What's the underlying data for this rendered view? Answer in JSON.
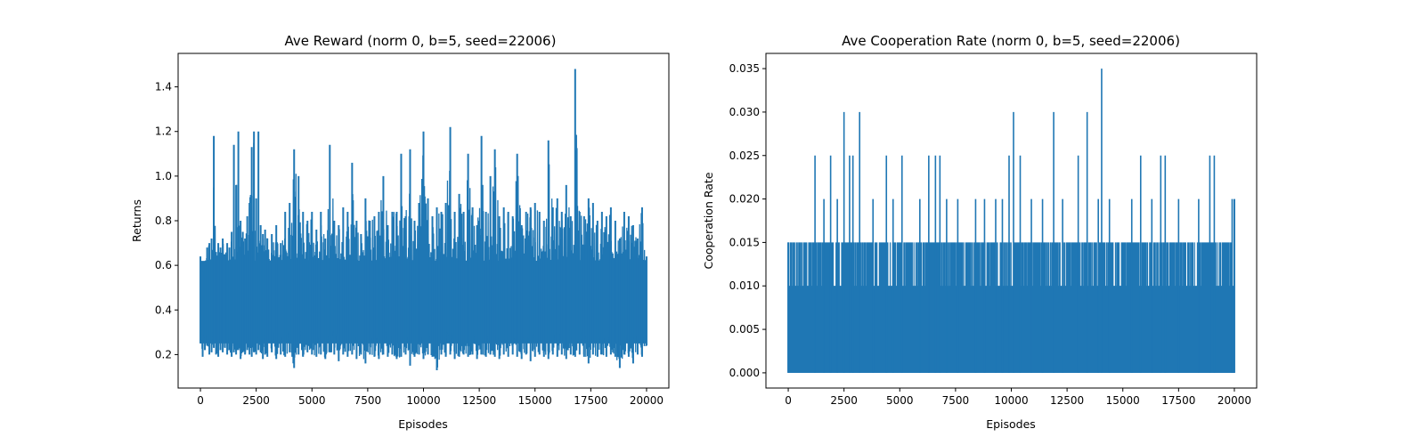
{
  "chart_data": [
    {
      "type": "line",
      "title": "Ave Reward (norm 0, b=5, seed=22006)",
      "xlabel": "Episodes",
      "ylabel": "Returns",
      "xlim": [
        -1000,
        21000
      ],
      "ylim": [
        0.05,
        1.55
      ],
      "xticks": [
        0,
        2500,
        5000,
        7500,
        10000,
        12500,
        15000,
        17500,
        20000
      ],
      "xtick_labels": [
        "0",
        "2500",
        "5000",
        "7500",
        "10000",
        "12500",
        "15000",
        "17500",
        "20000"
      ],
      "yticks": [
        0.2,
        0.4,
        0.6,
        0.8,
        1.0,
        1.2,
        1.4
      ],
      "ytick_labels": [
        "0.2",
        "0.4",
        "0.6",
        "0.8",
        "1.0",
        "1.2",
        "1.4"
      ],
      "grid": false,
      "color": "#1f77b4",
      "series": [
        {
          "x": [
            0,
            100,
            200,
            300,
            400,
            500,
            600,
            700,
            800,
            900,
            1000,
            1100,
            1200,
            1300,
            1400,
            1500,
            1600,
            1700,
            1800,
            1900,
            2000,
            2100,
            2200,
            2300,
            2400,
            2500,
            2600,
            2700,
            2800,
            2900,
            3000,
            3200,
            3400,
            3600,
            3800,
            4000,
            4200,
            4400,
            4600,
            4800,
            5000,
            5200,
            5400,
            5600,
            5800,
            6000,
            6200,
            6400,
            6600,
            6800,
            7000,
            7200,
            7400,
            7600,
            7800,
            8000,
            8200,
            8400,
            8600,
            8800,
            9000,
            9200,
            9400,
            9600,
            9800,
            10000,
            10200,
            10400,
            10600,
            10800,
            11000,
            11200,
            11400,
            11600,
            11800,
            12000,
            12200,
            12400,
            12600,
            12800,
            13000,
            13200,
            13400,
            13600,
            13800,
            14000,
            14200,
            14400,
            14600,
            14800,
            15000,
            15200,
            15400,
            15600,
            15800,
            16000,
            16200,
            16400,
            16600,
            16800,
            17000,
            17200,
            17400,
            17600,
            17800,
            18000,
            18200,
            18400,
            18600,
            18800,
            19000,
            19200,
            19400,
            19600,
            19800,
            20000
          ],
          "lo": [
            0.25,
            0.19,
            0.22,
            0.24,
            0.2,
            0.21,
            0.23,
            0.2,
            0.19,
            0.22,
            0.21,
            0.23,
            0.2,
            0.22,
            0.19,
            0.21,
            0.2,
            0.22,
            0.18,
            0.21,
            0.2,
            0.22,
            0.2,
            0.19,
            0.21,
            0.2,
            0.22,
            0.21,
            0.18,
            0.2,
            0.19,
            0.21,
            0.18,
            0.2,
            0.19,
            0.21,
            0.14,
            0.2,
            0.19,
            0.21,
            0.2,
            0.19,
            0.2,
            0.18,
            0.21,
            0.2,
            0.17,
            0.2,
            0.19,
            0.2,
            0.18,
            0.2,
            0.16,
            0.2,
            0.19,
            0.18,
            0.2,
            0.19,
            0.2,
            0.18,
            0.19,
            0.2,
            0.15,
            0.19,
            0.2,
            0.18,
            0.2,
            0.19,
            0.13,
            0.2,
            0.19,
            0.2,
            0.18,
            0.19,
            0.2,
            0.19,
            0.2,
            0.18,
            0.2,
            0.19,
            0.2,
            0.19,
            0.18,
            0.2,
            0.19,
            0.2,
            0.19,
            0.18,
            0.2,
            0.17,
            0.19,
            0.2,
            0.19,
            0.18,
            0.2,
            0.19,
            0.2,
            0.18,
            0.2,
            0.19,
            0.2,
            0.19,
            0.16,
            0.2,
            0.19,
            0.2,
            0.19,
            0.2,
            0.19,
            0.14,
            0.2,
            0.19,
            0.16,
            0.2,
            0.19,
            0.24
          ],
          "hi": [
            0.64,
            0.57,
            0.6,
            0.68,
            0.7,
            0.72,
            1.18,
            0.66,
            0.7,
            0.68,
            0.72,
            0.65,
            0.7,
            0.68,
            0.75,
            1.14,
            0.96,
            1.2,
            0.8,
            0.75,
            0.72,
            0.82,
            0.88,
            1.13,
            1.2,
            0.9,
            1.2,
            0.78,
            0.74,
            0.76,
            0.72,
            0.74,
            0.78,
            0.7,
            0.84,
            0.88,
            1.12,
            1.0,
            0.84,
            0.8,
            0.84,
            0.76,
            0.84,
            0.72,
            1.14,
            0.8,
            0.78,
            0.86,
            0.84,
            1.06,
            0.8,
            0.74,
            0.9,
            0.8,
            0.82,
            0.84,
            1.0,
            0.78,
            0.84,
            0.84,
            1.1,
            0.82,
            1.12,
            0.8,
            0.88,
            1.2,
            0.9,
            0.82,
            0.86,
            0.84,
            0.88,
            1.22,
            0.84,
            0.92,
            0.84,
            1.1,
            0.86,
            0.78,
            1.18,
            0.84,
            1.0,
            1.12,
            0.82,
            0.86,
            0.84,
            0.82,
            1.1,
            0.78,
            0.84,
            0.86,
            0.88,
            0.84,
            0.8,
            1.16,
            0.86,
            0.9,
            0.84,
            0.96,
            0.82,
            1.48,
            0.84,
            0.82,
            0.9,
            0.88,
            0.8,
            0.84,
            0.82,
            0.86,
            0.8,
            0.72,
            0.84,
            0.82,
            0.78,
            0.72,
            0.86,
            0.64
          ]
        }
      ]
    },
    {
      "type": "line",
      "title": "Ave Cooperation Rate (norm 0, b=5, seed=22006)",
      "xlabel": "Episodes",
      "ylabel": "Cooperation Rate",
      "xlim": [
        -1000,
        21000
      ],
      "ylim": [
        -0.00175,
        0.03675
      ],
      "xticks": [
        0,
        2500,
        5000,
        7500,
        10000,
        12500,
        15000,
        17500,
        20000
      ],
      "xtick_labels": [
        "0",
        "2500",
        "5000",
        "7500",
        "10000",
        "12500",
        "15000",
        "17500",
        "20000"
      ],
      "yticks": [
        0.0,
        0.005,
        0.01,
        0.015,
        0.02,
        0.025,
        0.03,
        0.035
      ],
      "ytick_labels": [
        "0.000",
        "0.005",
        "0.010",
        "0.015",
        "0.020",
        "0.025",
        "0.030",
        "0.035"
      ],
      "grid": false,
      "color": "#1f77b4",
      "base": 0.01,
      "peak": 0.015,
      "floor": 0.0,
      "spikes": [
        {
          "x": 1200,
          "y": 0.025
        },
        {
          "x": 1600,
          "y": 0.02
        },
        {
          "x": 1900,
          "y": 0.025
        },
        {
          "x": 2200,
          "y": 0.02
        },
        {
          "x": 2500,
          "y": 0.03
        },
        {
          "x": 2750,
          "y": 0.025
        },
        {
          "x": 2900,
          "y": 0.025
        },
        {
          "x": 3200,
          "y": 0.03
        },
        {
          "x": 3800,
          "y": 0.02
        },
        {
          "x": 4400,
          "y": 0.025
        },
        {
          "x": 4700,
          "y": 0.02
        },
        {
          "x": 5100,
          "y": 0.025
        },
        {
          "x": 5900,
          "y": 0.02
        },
        {
          "x": 6300,
          "y": 0.025
        },
        {
          "x": 6600,
          "y": 0.025
        },
        {
          "x": 6800,
          "y": 0.025
        },
        {
          "x": 7100,
          "y": 0.02
        },
        {
          "x": 7600,
          "y": 0.02
        },
        {
          "x": 8400,
          "y": 0.02
        },
        {
          "x": 8800,
          "y": 0.02
        },
        {
          "x": 9300,
          "y": 0.02
        },
        {
          "x": 9600,
          "y": 0.02
        },
        {
          "x": 9900,
          "y": 0.025
        },
        {
          "x": 10100,
          "y": 0.03
        },
        {
          "x": 10400,
          "y": 0.025
        },
        {
          "x": 10900,
          "y": 0.02
        },
        {
          "x": 11400,
          "y": 0.02
        },
        {
          "x": 11900,
          "y": 0.03
        },
        {
          "x": 12300,
          "y": 0.02
        },
        {
          "x": 13000,
          "y": 0.025
        },
        {
          "x": 13400,
          "y": 0.03
        },
        {
          "x": 13900,
          "y": 0.02
        },
        {
          "x": 14050,
          "y": 0.035
        },
        {
          "x": 14400,
          "y": 0.02
        },
        {
          "x": 15400,
          "y": 0.02
        },
        {
          "x": 15800,
          "y": 0.025
        },
        {
          "x": 16300,
          "y": 0.02
        },
        {
          "x": 16700,
          "y": 0.025
        },
        {
          "x": 16900,
          "y": 0.025
        },
        {
          "x": 17500,
          "y": 0.02
        },
        {
          "x": 18400,
          "y": 0.02
        },
        {
          "x": 18900,
          "y": 0.025
        },
        {
          "x": 19100,
          "y": 0.025
        },
        {
          "x": 19900,
          "y": 0.02
        }
      ]
    }
  ]
}
